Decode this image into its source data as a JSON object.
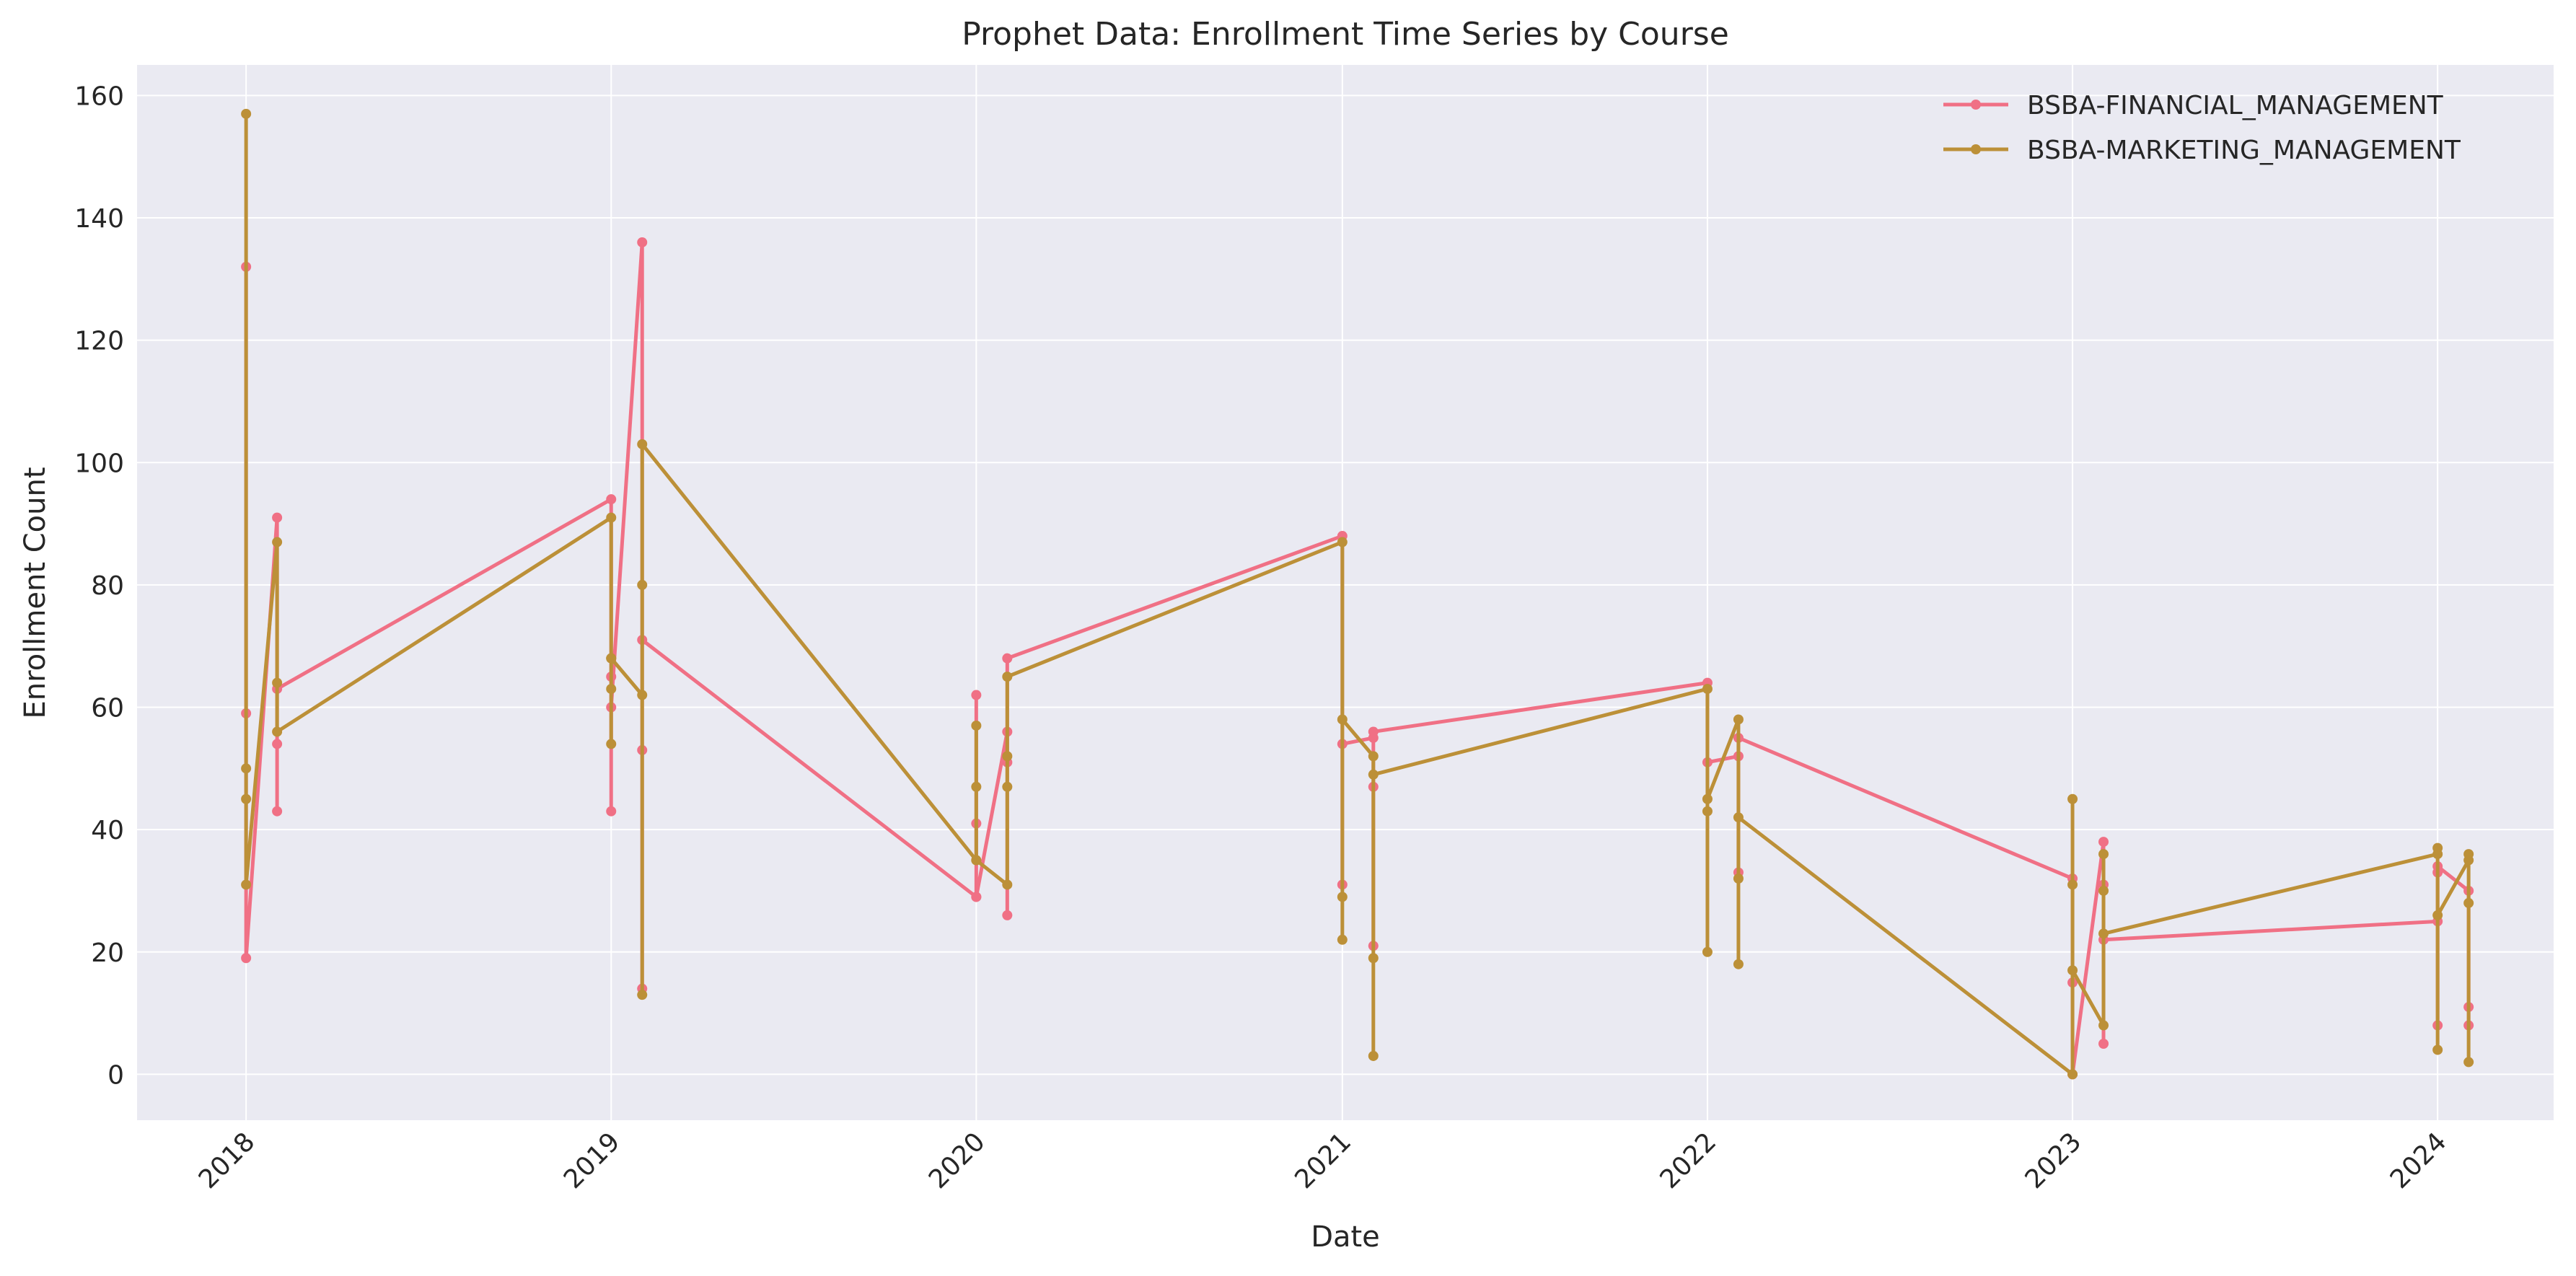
{
  "chart_data": {
    "type": "line",
    "title": "Prophet Data: Enrollment Time Series by Course",
    "xlabel": "Date",
    "ylabel": "Enrollment Count",
    "xlim": [
      "2017-09-14",
      "2024-04-26"
    ],
    "ylim": [
      -7.5,
      165
    ],
    "x_ticks": [
      "2018",
      "2019",
      "2020",
      "2021",
      "2022",
      "2023",
      "2024"
    ],
    "y_ticks": [
      0,
      20,
      40,
      60,
      80,
      100,
      120,
      140,
      160
    ],
    "grid": true,
    "legend_position": "top-right",
    "series": [
      {
        "name": "BSBA-FINANCIAL_MANAGEMENT",
        "color": "#f07085",
        "points": [
          [
            "2018-01-01",
            132
          ],
          [
            "2018-01-01",
            59
          ],
          [
            "2018-01-01",
            19
          ],
          [
            "2018-02-01",
            91
          ],
          [
            "2018-02-01",
            54
          ],
          [
            "2018-02-01",
            43
          ],
          [
            "2018-02-01",
            63
          ],
          [
            "2019-01-01",
            94
          ],
          [
            "2019-01-01",
            65
          ],
          [
            "2019-01-01",
            43
          ],
          [
            "2019-01-01",
            60
          ],
          [
            "2019-02-01",
            136
          ],
          [
            "2019-02-01",
            53
          ],
          [
            "2019-02-01",
            14
          ],
          [
            "2019-02-01",
            71
          ],
          [
            "2020-01-01",
            29
          ],
          [
            "2020-01-01",
            62
          ],
          [
            "2020-01-01",
            41
          ],
          [
            "2020-01-01",
            29
          ],
          [
            "2020-02-01",
            56
          ],
          [
            "2020-02-01",
            51
          ],
          [
            "2020-02-01",
            26
          ],
          [
            "2020-02-01",
            68
          ],
          [
            "2021-01-01",
            88
          ],
          [
            "2021-01-01",
            31
          ],
          [
            "2021-01-01",
            54
          ],
          [
            "2021-02-01",
            55
          ],
          [
            "2021-02-01",
            47
          ],
          [
            "2021-02-01",
            21
          ],
          [
            "2021-02-01",
            56
          ],
          [
            "2022-01-01",
            64
          ],
          [
            "2022-01-01",
            51
          ],
          [
            "2022-02-01",
            52
          ],
          [
            "2022-02-01",
            33
          ],
          [
            "2022-02-01",
            55
          ],
          [
            "2023-01-01",
            32
          ],
          [
            "2023-01-01",
            15
          ],
          [
            "2023-01-01",
            0
          ],
          [
            "2023-02-01",
            38
          ],
          [
            "2023-02-01",
            31
          ],
          [
            "2023-02-01",
            5
          ],
          [
            "2023-02-01",
            22
          ],
          [
            "2024-01-01",
            25
          ],
          [
            "2024-01-01",
            33
          ],
          [
            "2024-01-01",
            8
          ],
          [
            "2024-01-01",
            34
          ],
          [
            "2024-02-01",
            30
          ],
          [
            "2024-02-01",
            8
          ],
          [
            "2024-02-01",
            11
          ]
        ]
      },
      {
        "name": "BSBA-MARKETING_MANAGEMENT",
        "color": "#bc9038",
        "points": [
          [
            "2018-01-01",
            157
          ],
          [
            "2018-01-01",
            50
          ],
          [
            "2018-01-01",
            45
          ],
          [
            "2018-01-01",
            31
          ],
          [
            "2018-02-01",
            87
          ],
          [
            "2018-02-01",
            64
          ],
          [
            "2018-02-01",
            56
          ],
          [
            "2019-01-01",
            91
          ],
          [
            "2019-01-01",
            68
          ],
          [
            "2019-01-01",
            63
          ],
          [
            "2019-01-01",
            54
          ],
          [
            "2019-01-01",
            68
          ],
          [
            "2019-02-01",
            62
          ],
          [
            "2019-02-01",
            80
          ],
          [
            "2019-02-01",
            13
          ],
          [
            "2019-02-01",
            103
          ],
          [
            "2020-01-01",
            35
          ],
          [
            "2020-01-01",
            57
          ],
          [
            "2020-01-01",
            47
          ],
          [
            "2020-01-01",
            35
          ],
          [
            "2020-02-01",
            31
          ],
          [
            "2020-02-01",
            52
          ],
          [
            "2020-02-01",
            47
          ],
          [
            "2020-02-01",
            65
          ],
          [
            "2021-01-01",
            87
          ],
          [
            "2021-01-01",
            29
          ],
          [
            "2021-01-01",
            22
          ],
          [
            "2021-01-01",
            58
          ],
          [
            "2021-02-01",
            52
          ],
          [
            "2021-02-01",
            19
          ],
          [
            "2021-02-01",
            3
          ],
          [
            "2021-02-01",
            49
          ],
          [
            "2022-01-01",
            63
          ],
          [
            "2022-01-01",
            43
          ],
          [
            "2022-01-01",
            20
          ],
          [
            "2022-01-01",
            45
          ],
          [
            "2022-02-01",
            58
          ],
          [
            "2022-02-01",
            32
          ],
          [
            "2022-02-01",
            18
          ],
          [
            "2022-02-01",
            42
          ],
          [
            "2023-01-01",
            0
          ],
          [
            "2023-01-01",
            45
          ],
          [
            "2023-01-01",
            31
          ],
          [
            "2023-01-01",
            17
          ],
          [
            "2023-02-01",
            8
          ],
          [
            "2023-02-01",
            36
          ],
          [
            "2023-02-01",
            30
          ],
          [
            "2023-02-01",
            23
          ],
          [
            "2024-01-01",
            36
          ],
          [
            "2024-01-01",
            37
          ],
          [
            "2024-01-01",
            4
          ],
          [
            "2024-01-01",
            26
          ],
          [
            "2024-02-01",
            35
          ],
          [
            "2024-02-01",
            36
          ],
          [
            "2024-02-01",
            2
          ],
          [
            "2024-02-01",
            28
          ]
        ]
      }
    ]
  }
}
